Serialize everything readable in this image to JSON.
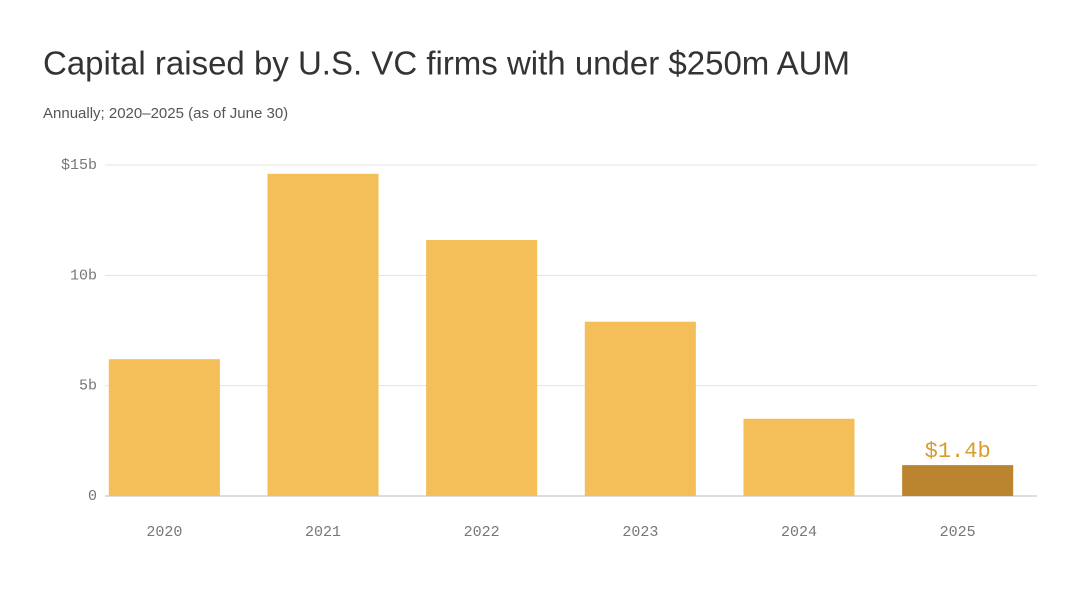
{
  "chart_data": {
    "type": "bar",
    "title": "Capital raised by U.S. VC firms with under $250m AUM",
    "subtitle": "Annually; 2020–2025 (as of June 30)",
    "categories": [
      "2020",
      "2021",
      "2022",
      "2023",
      "2024",
      "2025"
    ],
    "values": [
      6.2,
      14.6,
      11.6,
      7.9,
      3.5,
      1.4
    ],
    "value_labels": [
      null,
      null,
      null,
      null,
      null,
      "$1.4b"
    ],
    "colors": [
      "#f4be58",
      "#f4be58",
      "#f4be58",
      "#f4be58",
      "#f4be58",
      "#bb842e"
    ],
    "label_color": "#d69e2e",
    "ylim": [
      0,
      15
    ],
    "yticks": [
      0,
      {
        "value": 5,
        "label": "5b"
      },
      {
        "value": 10,
        "label": "10b"
      },
      {
        "value": 15,
        "label": "$15b"
      }
    ],
    "grid": true
  }
}
